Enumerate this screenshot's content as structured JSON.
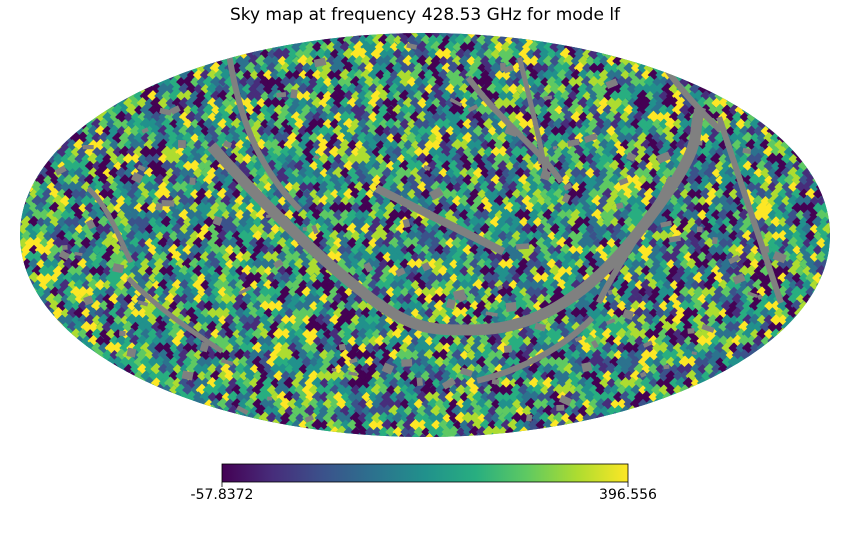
{
  "chart_data": {
    "type": "heatmap",
    "projection": "mollweide",
    "title": "Sky map at frequency 428.53 GHz for mode lf",
    "colormap": "viridis",
    "color_min": -57.8372,
    "color_max": 396.556,
    "colorbar_labels": [
      "-57.8372",
      "396.556"
    ],
    "masked_color": "#808080",
    "seed": 42853
  }
}
